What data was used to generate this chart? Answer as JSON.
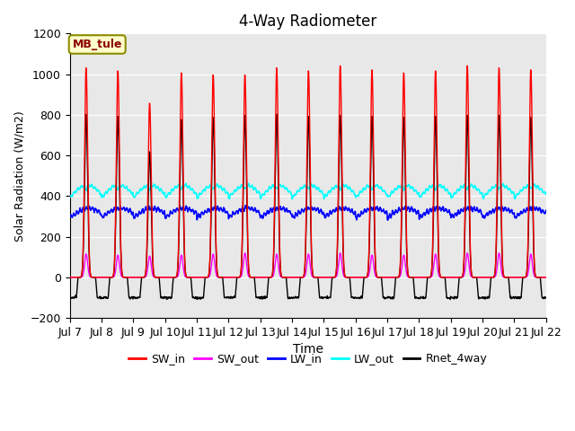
{
  "title": "4-Way Radiometer",
  "xlabel": "Time",
  "ylabel": "Solar Radiation (W/m2)",
  "ylim": [
    -200,
    1200
  ],
  "xlim_days": [
    7,
    22
  ],
  "xtick_labels": [
    "Jul 7",
    "Jul 8",
    "Jul 9",
    "Jul 10",
    "Jul 11",
    "Jul 12",
    "Jul 13",
    "Jul 14",
    "Jul 15",
    "Jul 16",
    "Jul 17",
    "Jul 18",
    "Jul 19",
    "Jul 20",
    "Jul 21",
    "Jul 22"
  ],
  "station_label": "MB_tule",
  "colors": {
    "SW_in": "#FF0000",
    "SW_out": "#FF00FF",
    "LW_in": "#0000FF",
    "LW_out": "#00FFFF",
    "Rnet_4way": "#000000"
  },
  "background_color": "#E8E8E8",
  "grid_color": "#FFFFFF",
  "sw_peaks": [
    1035,
    1020,
    860,
    1010,
    1000,
    1000,
    1035,
    1020,
    1045,
    1025,
    1010,
    1020,
    1045,
    1035,
    1025
  ],
  "sw_out_peaks": [
    115,
    110,
    105,
    110,
    115,
    120,
    115,
    115,
    120,
    110,
    110,
    115,
    120,
    120,
    115
  ],
  "rnet_peaks": [
    805,
    795,
    620,
    780,
    790,
    800,
    805,
    795,
    800,
    795,
    790,
    795,
    800,
    800,
    790
  ],
  "lw_in_base": 310,
  "lw_out_base": 420,
  "rnet_night": -100
}
